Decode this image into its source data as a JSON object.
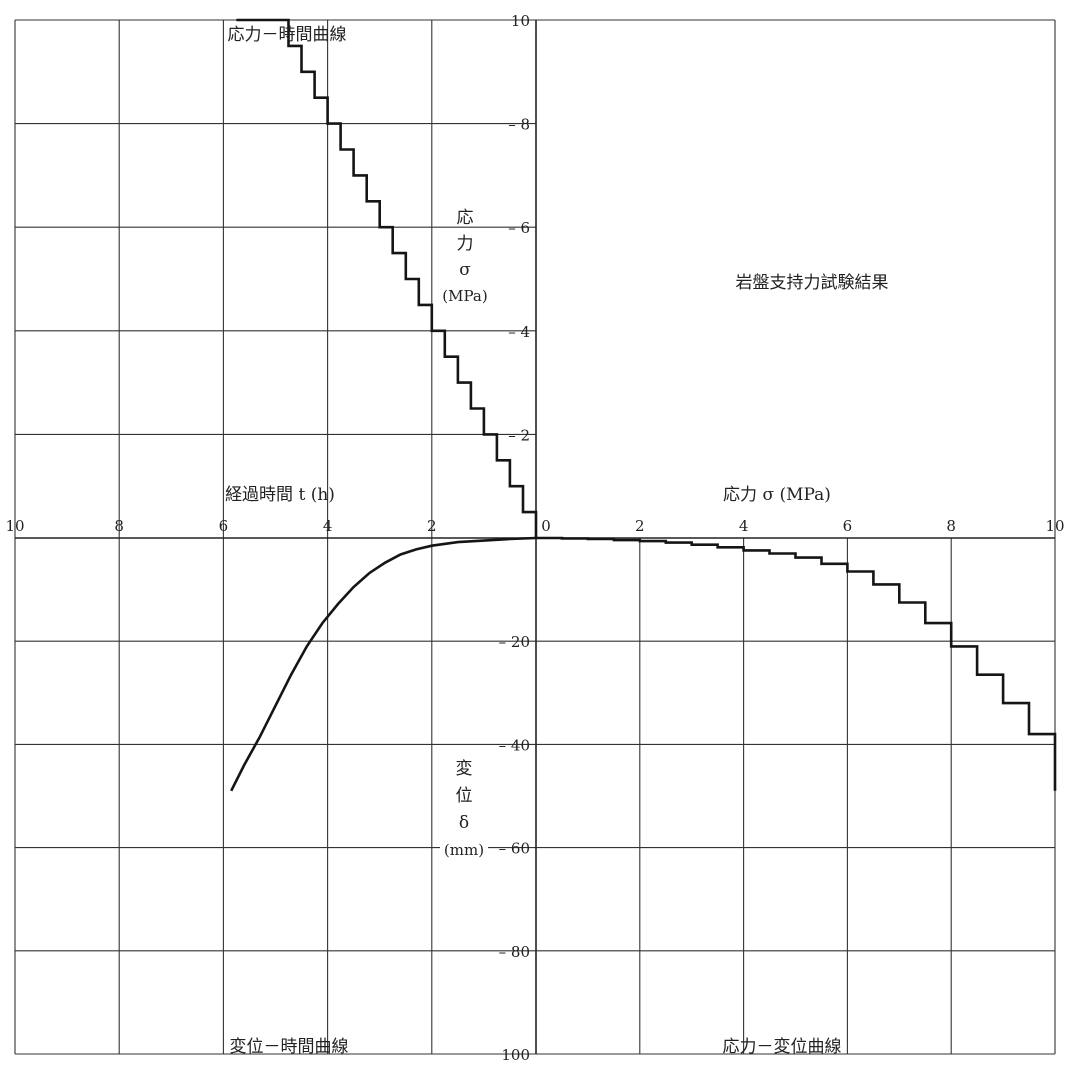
{
  "panel_titles": {
    "top_left": "応力－時間曲線",
    "top_right": "岩盤支持力試験結果",
    "bottom_left": "変位－時間曲線",
    "bottom_right": "応力－変位曲線"
  },
  "axis_labels": {
    "time": "経過時間 t (h)",
    "stress_h": "応力 σ (MPa)",
    "stress_v": [
      "応",
      "力",
      "σ",
      "(MPa)"
    ],
    "displacement_v": [
      "変",
      "位",
      "δ",
      "(mm)"
    ]
  },
  "chart_data": [
    {
      "type": "line",
      "title": "応力－時間曲線",
      "xlabel": "経過時間 t (h)",
      "ylabel": "応力 σ (MPa)",
      "xlim": [
        0,
        10
      ],
      "ylim": [
        0,
        10
      ],
      "x_reversed": true,
      "xticks": [
        10,
        8,
        6,
        4,
        2
      ],
      "yticks": [
        10,
        8,
        6,
        4,
        2
      ],
      "step": true,
      "series": [
        {
          "x": [
            0,
            0.25,
            0.5,
            0.75,
            1.0,
            1.25,
            1.5,
            1.75,
            2.0,
            2.25,
            2.5,
            2.75,
            3.0,
            3.25,
            3.5,
            3.75,
            4.0,
            4.25,
            4.5,
            4.75,
            5.0,
            5.25,
            5.5,
            5.75
          ],
          "y": [
            0,
            0.5,
            1.0,
            1.5,
            2.0,
            2.5,
            3.0,
            3.5,
            4.0,
            4.5,
            5.0,
            5.5,
            6.0,
            6.5,
            7.0,
            7.5,
            8.0,
            8.5,
            9.0,
            9.5,
            10.0,
            10.0,
            10.0,
            10.0
          ]
        }
      ]
    },
    {
      "type": "line",
      "title": "変位－時間曲線",
      "xlabel": "経過時間 t (h)",
      "ylabel": "変位 δ (mm)",
      "xlim": [
        0,
        10
      ],
      "ylim": [
        0,
        100
      ],
      "x_reversed": true,
      "y_reversed": true,
      "series": [
        {
          "x": [
            0,
            0.5,
            1.0,
            1.5,
            2.0,
            2.3,
            2.6,
            2.9,
            3.2,
            3.5,
            3.8,
            4.1,
            4.4,
            4.7,
            5.0,
            5.3,
            5.6,
            5.85
          ],
          "y": [
            0,
            0.2,
            0.5,
            0.8,
            1.5,
            2.2,
            3.2,
            4.8,
            6.8,
            9.5,
            12.8,
            16.5,
            21.0,
            26.5,
            32.5,
            38.5,
            44.0,
            49.0
          ]
        }
      ]
    },
    {
      "type": "line",
      "title": "応力－変位曲線",
      "xlabel": "応力 σ (MPa)",
      "ylabel": "変位 δ (mm)",
      "xlim": [
        0,
        10
      ],
      "ylim": [
        0,
        100
      ],
      "y_reversed": true,
      "xticks": [
        0,
        2,
        4,
        6,
        8,
        10
      ],
      "yticks": [
        20,
        40,
        60,
        80,
        100
      ],
      "step": true,
      "series": [
        {
          "x": [
            0,
            0.5,
            1.0,
            1.5,
            2.0,
            2.5,
            3.0,
            3.5,
            4.0,
            4.5,
            5.0,
            5.5,
            6.0,
            6.5,
            7.0,
            7.5,
            8.0,
            8.5,
            9.0,
            9.5,
            10.0
          ],
          "y": [
            0,
            0.1,
            0.2,
            0.4,
            0.6,
            0.9,
            1.3,
            1.8,
            2.4,
            3.0,
            3.8,
            5.0,
            6.5,
            9.0,
            12.5,
            16.5,
            21.0,
            26.5,
            32.0,
            38.0,
            44.5
          ]
        }
      ]
    }
  ]
}
